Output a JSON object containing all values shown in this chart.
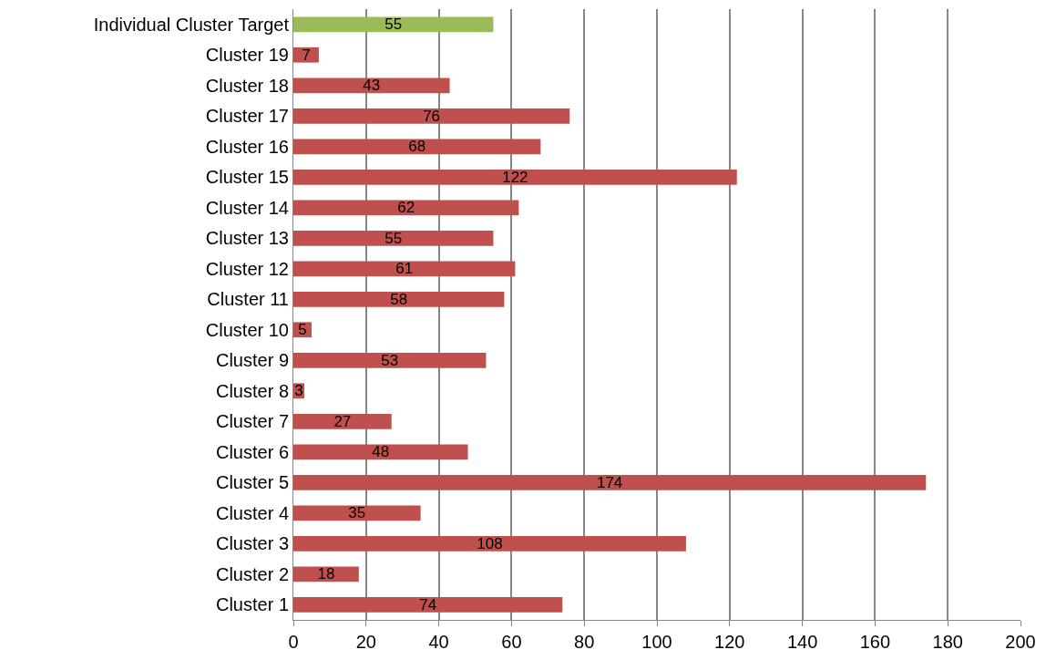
{
  "chart_data": {
    "type": "bar",
    "orientation": "horizontal",
    "categories": [
      "Individual Cluster Target",
      "Cluster 19",
      "Cluster 18",
      "Cluster 17",
      "Cluster 16",
      "Cluster 15",
      "Cluster 14",
      "Cluster 13",
      "Cluster 12",
      "Cluster 11",
      "Cluster 10",
      "Cluster 9",
      "Cluster 8",
      "Cluster 7",
      "Cluster 6",
      "Cluster 5",
      "Cluster 4",
      "Cluster 3",
      "Cluster 2",
      "Cluster 1"
    ],
    "values": [
      55,
      7,
      43,
      76,
      68,
      122,
      62,
      55,
      61,
      58,
      5,
      53,
      3,
      27,
      48,
      174,
      35,
      108,
      18,
      74
    ],
    "colors": [
      "#9bbb59",
      "#c0504d",
      "#c0504d",
      "#c0504d",
      "#c0504d",
      "#c0504d",
      "#c0504d",
      "#c0504d",
      "#c0504d",
      "#c0504d",
      "#c0504d",
      "#c0504d",
      "#c0504d",
      "#c0504d",
      "#c0504d",
      "#c0504d",
      "#c0504d",
      "#c0504d",
      "#c0504d",
      "#c0504d"
    ],
    "xlim": [
      0,
      200
    ],
    "xticks": [
      0,
      20,
      40,
      60,
      80,
      100,
      120,
      140,
      160,
      180,
      200
    ],
    "grid": "x",
    "data_labels": true,
    "legend": false
  }
}
